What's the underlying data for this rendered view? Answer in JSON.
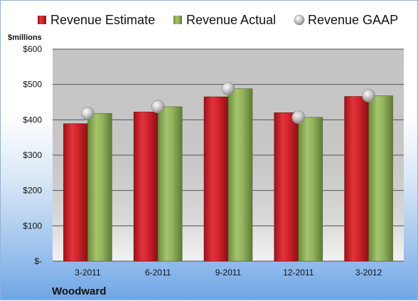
{
  "chart_data": {
    "type": "bar",
    "unit_label": "$millions",
    "company": "Woodward",
    "categories": [
      "3-2011",
      "6-2011",
      "9-2011",
      "12-2011",
      "3-2012"
    ],
    "series": [
      {
        "name": "Revenue Estimate",
        "kind": "bar",
        "color": "#c8202a",
        "values": [
          389,
          422,
          465,
          420,
          466
        ]
      },
      {
        "name": "Revenue Actual",
        "kind": "bar",
        "color": "#8aab57",
        "values": [
          418,
          437,
          488,
          407,
          468
        ]
      },
      {
        "name": "Revenue GAAP",
        "kind": "marker",
        "color": "#c9c9c9",
        "values": [
          418,
          437,
          488,
          407,
          468
        ]
      }
    ],
    "ylim": [
      0,
      600
    ],
    "yticks": [
      0,
      100,
      200,
      300,
      400,
      500,
      600
    ],
    "ytick_labels": [
      "$-",
      "$100",
      "$200",
      "$300",
      "$400",
      "$500",
      "$600"
    ],
    "grid": true,
    "legend": "top"
  }
}
